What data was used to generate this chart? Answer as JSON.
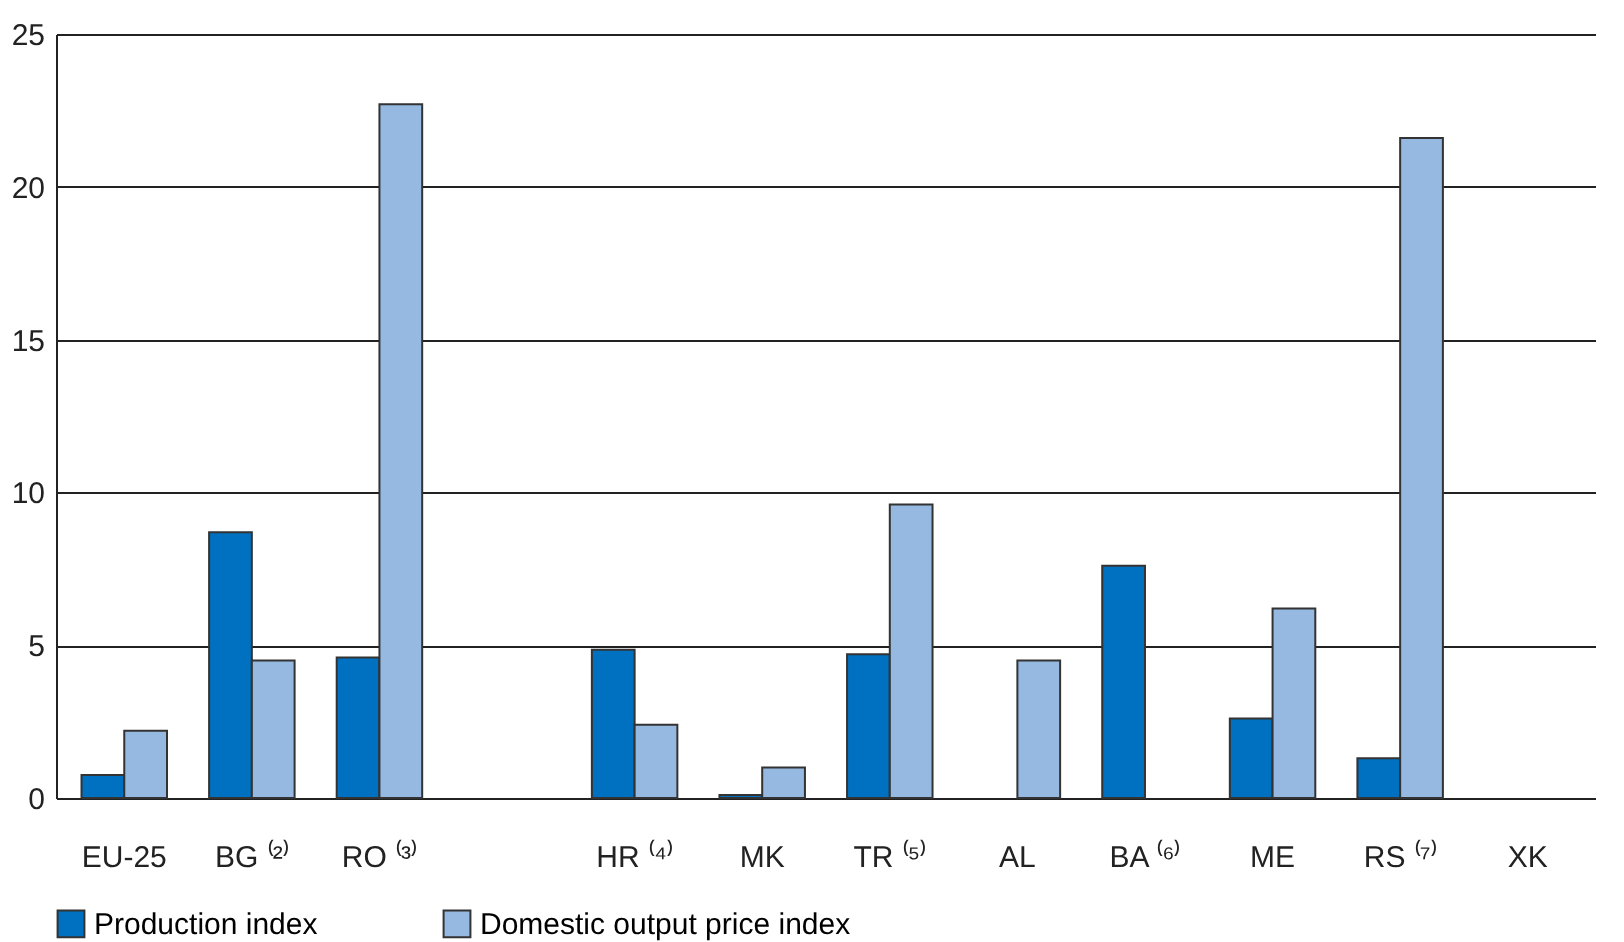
{
  "chart_data": {
    "type": "bar",
    "categories": [
      "EU-25",
      "BG ⁽²⁾",
      "RO ⁽³⁾",
      null,
      "HR ⁽⁴⁾",
      "MK",
      "TR ⁽⁵⁾",
      "AL",
      "BA ⁽⁶⁾",
      "ME",
      "RS ⁽⁷⁾",
      "XK"
    ],
    "series": [
      {
        "name": "Production index",
        "color": "#0070c0",
        "values": [
          0.75,
          8.7,
          4.6,
          null,
          4.85,
          0.1,
          4.7,
          null,
          7.6,
          2.6,
          1.3,
          null
        ]
      },
      {
        "name": "Domestic output price index",
        "color": "#95b9e1",
        "values": [
          2.2,
          4.5,
          22.7,
          null,
          2.4,
          1.0,
          9.6,
          4.5,
          null,
          6.2,
          21.6,
          null
        ]
      }
    ],
    "ylim": [
      0,
      25
    ],
    "yticks": [
      0,
      5,
      10,
      15,
      20,
      25
    ],
    "grid": "y",
    "legend": "bottom"
  }
}
